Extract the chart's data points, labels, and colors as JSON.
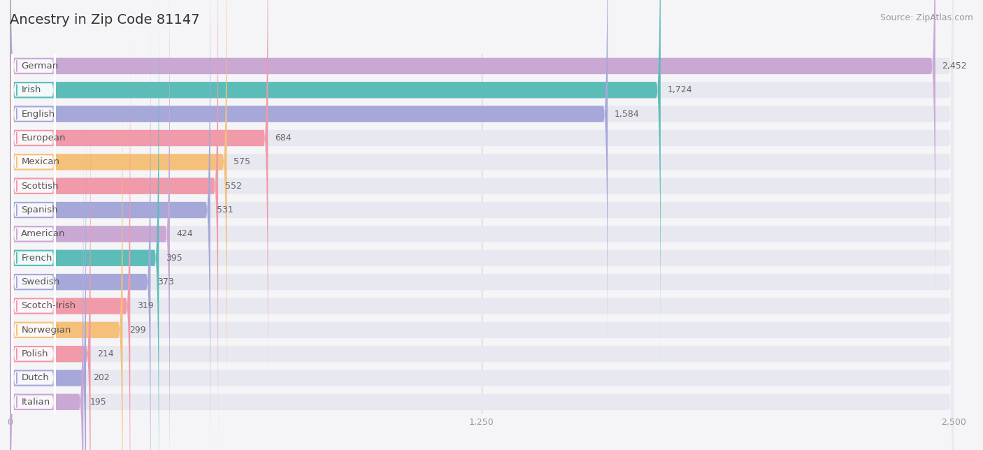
{
  "title": "Ancestry in Zip Code 81147",
  "source": "Source: ZipAtlas.com",
  "categories": [
    "German",
    "Irish",
    "English",
    "European",
    "Mexican",
    "Scottish",
    "Spanish",
    "American",
    "French",
    "Swedish",
    "Scotch-Irish",
    "Norwegian",
    "Polish",
    "Dutch",
    "Italian"
  ],
  "values": [
    2452,
    1724,
    1584,
    684,
    575,
    552,
    531,
    424,
    395,
    373,
    319,
    299,
    214,
    202,
    195
  ],
  "bar_colors": [
    "#c9a8d4",
    "#5bbcb8",
    "#a5a8d8",
    "#f09aaa",
    "#f5c07a",
    "#f09aaa",
    "#a5a8d8",
    "#c9a8d4",
    "#5bbcb8",
    "#a5a8d8",
    "#f09aaa",
    "#f5c07a",
    "#f09aaa",
    "#a5a8d8",
    "#c9a8d4"
  ],
  "bg_color": "#f5f5f8",
  "bar_bg_color": "#e8e8f0",
  "xlim_max": 2500,
  "xticks": [
    0,
    1250,
    2500
  ],
  "label_fontsize": 9.5,
  "title_fontsize": 14,
  "value_fontsize": 9,
  "source_fontsize": 9
}
